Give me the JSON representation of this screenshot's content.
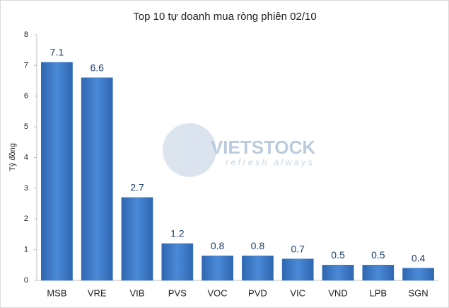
{
  "chart_data": {
    "type": "bar",
    "title": "Top 10 tự doanh mua ròng phiên 02/10",
    "y_label": "Tỷ đồng",
    "categories": [
      "MSB",
      "VRE",
      "VIB",
      "PVS",
      "VOC",
      "PVD",
      "VIC",
      "VND",
      "LPB",
      "SGN"
    ],
    "values": [
      7.1,
      6.6,
      2.7,
      1.2,
      0.8,
      0.8,
      0.7,
      0.5,
      0.5,
      0.4
    ],
    "color": "#3a78c8",
    "ylim": [
      0,
      8
    ],
    "yticks": [
      0,
      1,
      2,
      3,
      4,
      5,
      6,
      7,
      8
    ],
    "grid": false,
    "watermark": "VIETSTOCK",
    "watermark_tagline": "refresh always"
  }
}
